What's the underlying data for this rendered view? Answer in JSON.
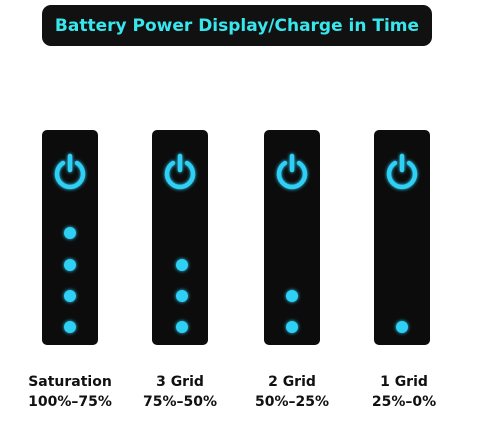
{
  "header": {
    "title": "Battery Power Display/Charge in Time"
  },
  "panels": [
    {
      "label": "Saturation",
      "range": "100%–75%"
    },
    {
      "label": "3 Grid",
      "range": "75%–50%"
    },
    {
      "label": "2 Grid",
      "range": "50%–25%"
    },
    {
      "label": "1 Grid",
      "range": "25%–0%"
    }
  ]
}
